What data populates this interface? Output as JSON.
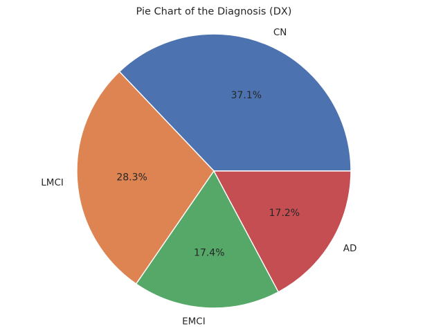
{
  "chart_data": {
    "type": "pie",
    "title": "Pie Chart of the Diagnosis (DX)",
    "labels": [
      "CN",
      "LMCI",
      "EMCI",
      "AD"
    ],
    "values": [
      37.1,
      28.3,
      17.4,
      17.2
    ],
    "percent_labels": [
      "37.1%",
      "28.3%",
      "17.4%",
      "17.2%"
    ],
    "colors": [
      "#4c72b0",
      "#dd8452",
      "#55a868",
      "#c44e52"
    ],
    "start_angle_deg": 0,
    "direction": "counterclockwise",
    "legend": "none"
  }
}
